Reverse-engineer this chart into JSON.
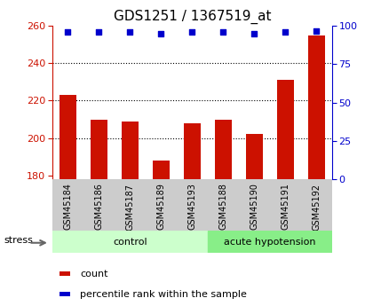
{
  "title": "GDS1251 / 1367519_at",
  "samples": [
    "GSM45184",
    "GSM45186",
    "GSM45187",
    "GSM45189",
    "GSM45193",
    "GSM45188",
    "GSM45190",
    "GSM45191",
    "GSM45192"
  ],
  "counts": [
    223,
    210,
    209,
    188,
    208,
    210,
    202,
    231,
    255
  ],
  "percentiles": [
    96,
    96,
    96,
    95,
    96,
    96,
    95,
    96,
    97
  ],
  "bar_color": "#cc1100",
  "dot_color": "#0000cc",
  "ylim_left": [
    178,
    260
  ],
  "ylim_right": [
    0,
    100
  ],
  "yticks_left": [
    180,
    200,
    220,
    240,
    260
  ],
  "yticks_right": [
    0,
    25,
    50,
    75,
    100
  ],
  "grid_values": [
    200,
    220,
    240
  ],
  "control_color": "#ccffcc",
  "acute_color": "#88ee88",
  "tick_label_bg": "#cccccc",
  "axis_color_left": "#cc1100",
  "axis_color_right": "#0000cc",
  "title_fontsize": 11,
  "n_control": 5,
  "stress_label": "stress",
  "legend_count_label": "count",
  "legend_pct_label": "percentile rank within the sample"
}
